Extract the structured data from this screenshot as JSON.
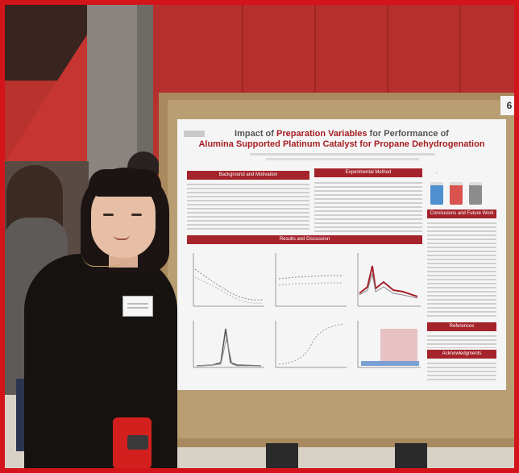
{
  "board": {
    "number": "6"
  },
  "poster": {
    "title_line1_prefix": "Impact of ",
    "title_line1_highlight": "Preparation Variables",
    "title_line1_suffix": " for Performance of",
    "title_line2": "Alumina Supported Platinum Catalyst for Propane Dehydrogenation",
    "sections": {
      "background": "Background and Motivation",
      "methods": "Experimental Method",
      "results": "Results and Discussion",
      "conclusions": "Conclusions and Future Work",
      "references": "References",
      "acknowledgments": "Acknowledgments"
    }
  },
  "colors": {
    "frame": "#d4141b",
    "poster_accent": "#a5232b",
    "wall": "#b5302c",
    "vial_blue": "#4f8fd0",
    "vial_red": "#d9534f",
    "vial_gray": "#8c8c8c"
  }
}
